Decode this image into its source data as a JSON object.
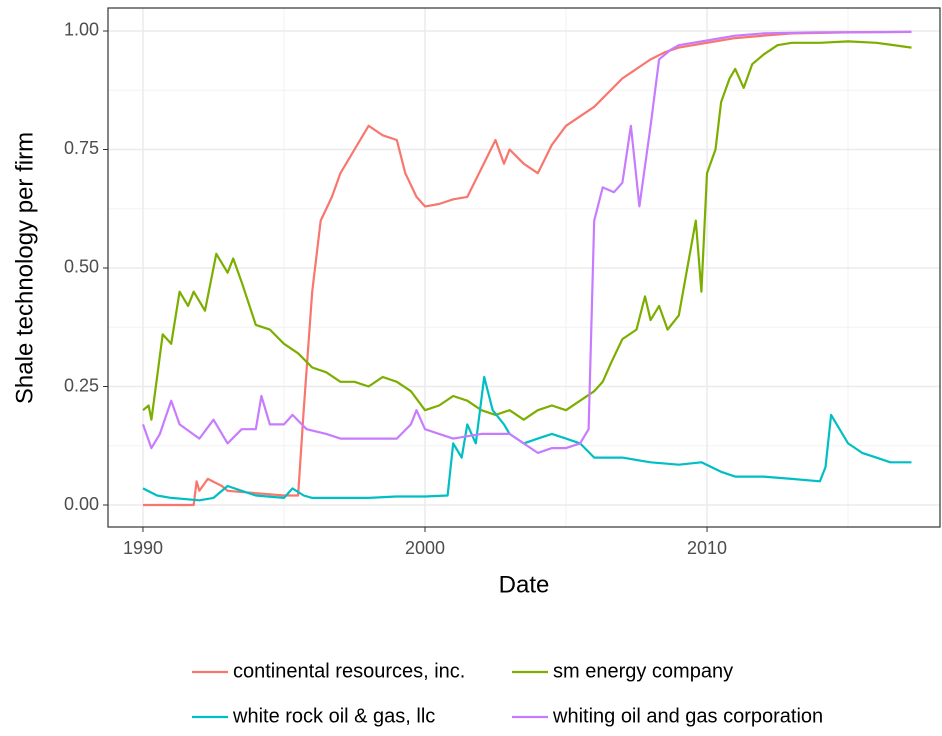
{
  "chart_data": {
    "type": "line",
    "x_label": "Date",
    "y_label": "Shale technology per firm",
    "xlim": [
      1988.76,
      2018.26
    ],
    "ylim": [
      -0.0464,
      1.0485
    ],
    "xticks": [
      1990,
      2000,
      2010
    ],
    "yticks": [
      {
        "value": 0,
        "label": "0.00"
      },
      {
        "value": 0.25,
        "label": "0.25"
      },
      {
        "value": 0.5,
        "label": "0.50"
      },
      {
        "value": 0.75,
        "label": "0.75"
      },
      {
        "value": 1,
        "label": "1.00"
      }
    ],
    "grid": true,
    "legend_position": "bottom",
    "series": [
      {
        "name": "continental resources, inc.",
        "color": "#F8766D",
        "x": [
          1990,
          1991.8,
          1991.9,
          1992,
          1992.3,
          1992.8,
          1993,
          1994,
          1995,
          1995.5,
          1995.7,
          1996,
          1996.3,
          1996.7,
          1997,
          1997.5,
          1998,
          1998.5,
          1999,
          1999.3,
          1999.7,
          2000,
          2000.5,
          2001,
          2001.5,
          2002,
          2002.5,
          2002.8,
          2003,
          2003.5,
          2004,
          2004.5,
          2005,
          2005.5,
          2006,
          2006.5,
          2007,
          2007.5,
          2008,
          2008.5,
          2009,
          2009.5,
          2010,
          2011,
          2012,
          2013,
          2015,
          2017.25
        ],
        "values": [
          0,
          0,
          0.05,
          0.03,
          0.055,
          0.04,
          0.03,
          0.025,
          0.02,
          0.02,
          0.2,
          0.45,
          0.6,
          0.65,
          0.7,
          0.75,
          0.8,
          0.78,
          0.77,
          0.7,
          0.65,
          0.63,
          0.635,
          0.645,
          0.65,
          0.71,
          0.77,
          0.72,
          0.75,
          0.72,
          0.7,
          0.76,
          0.8,
          0.82,
          0.84,
          0.87,
          0.9,
          0.92,
          0.94,
          0.955,
          0.965,
          0.97,
          0.975,
          0.985,
          0.99,
          0.995,
          0.997,
          0.998
        ]
      },
      {
        "name": "sm energy company",
        "color": "#7CAE00",
        "x": [
          1990,
          1990.2,
          1990.3,
          1990.5,
          1990.7,
          1991,
          1991.3,
          1991.6,
          1991.8,
          1992.2,
          1992.6,
          1993,
          1993.2,
          1993.5,
          1994,
          1994.5,
          1995,
          1995.5,
          1996,
          1996.5,
          1997,
          1997.5,
          1998,
          1998.5,
          1999,
          1999.5,
          2000,
          2000.5,
          2001,
          2001.5,
          2002,
          2002.5,
          2003,
          2003.5,
          2004,
          2004.5,
          2005,
          2005.5,
          2006,
          2006.3,
          2006.6,
          2007,
          2007.5,
          2007.8,
          2008,
          2008.3,
          2008.6,
          2009,
          2009.3,
          2009.6,
          2009.8,
          2010,
          2010.3,
          2010.5,
          2010.8,
          2011,
          2011.3,
          2011.6,
          2012,
          2012.5,
          2013,
          2014,
          2015,
          2016,
          2017.25
        ],
        "values": [
          0.2,
          0.21,
          0.18,
          0.27,
          0.36,
          0.34,
          0.45,
          0.42,
          0.45,
          0.41,
          0.53,
          0.49,
          0.52,
          0.47,
          0.38,
          0.37,
          0.34,
          0.32,
          0.29,
          0.28,
          0.26,
          0.26,
          0.25,
          0.27,
          0.26,
          0.24,
          0.2,
          0.21,
          0.23,
          0.22,
          0.2,
          0.19,
          0.2,
          0.18,
          0.2,
          0.21,
          0.2,
          0.22,
          0.24,
          0.26,
          0.3,
          0.35,
          0.37,
          0.44,
          0.39,
          0.42,
          0.37,
          0.4,
          0.5,
          0.6,
          0.45,
          0.7,
          0.75,
          0.85,
          0.9,
          0.92,
          0.88,
          0.93,
          0.95,
          0.97,
          0.975,
          0.975,
          0.978,
          0.975,
          0.965
        ]
      },
      {
        "name": "white rock oil & gas, llc",
        "color": "#00BFC4",
        "x": [
          1990,
          1990.5,
          1991,
          1992,
          1992.5,
          1993,
          1993.5,
          1994,
          1995,
          1995.3,
          1995.7,
          1996,
          1997,
          1998,
          1999,
          2000,
          2000.8,
          2001,
          2001.3,
          2001.5,
          2001.8,
          2002.1,
          2002.4,
          2002.8,
          2003,
          2003.5,
          2004,
          2004.5,
          2005,
          2005.5,
          2006,
          2007,
          2008,
          2009,
          2009.8,
          2010.5,
          2011,
          2012,
          2013,
          2014,
          2014.2,
          2014.4,
          2014.7,
          2015,
          2015.5,
          2016,
          2016.5,
          2017.25
        ],
        "values": [
          0.035,
          0.02,
          0.015,
          0.01,
          0.015,
          0.04,
          0.03,
          0.02,
          0.015,
          0.035,
          0.02,
          0.015,
          0.015,
          0.015,
          0.018,
          0.018,
          0.02,
          0.13,
          0.1,
          0.17,
          0.13,
          0.27,
          0.2,
          0.17,
          0.15,
          0.13,
          0.14,
          0.15,
          0.14,
          0.13,
          0.1,
          0.1,
          0.09,
          0.085,
          0.09,
          0.07,
          0.06,
          0.06,
          0.055,
          0.05,
          0.08,
          0.19,
          0.16,
          0.13,
          0.11,
          0.1,
          0.09,
          0.09
        ]
      },
      {
        "name": "whiting oil and gas corporation",
        "color": "#C77CFF",
        "x": [
          1990,
          1990.3,
          1990.6,
          1991,
          1991.3,
          1992,
          1992.5,
          1993,
          1993.5,
          1994,
          1994.2,
          1994.5,
          1995,
          1995.3,
          1995.8,
          1996.5,
          1997,
          1998,
          1999,
          1999.5,
          1999.7,
          2000,
          2000.5,
          2001,
          2002,
          2003,
          2003.5,
          2004,
          2004.5,
          2005,
          2005.5,
          2005.8,
          2006,
          2006.3,
          2006.7,
          2007,
          2007.3,
          2007.6,
          2008,
          2008.3,
          2008.7,
          2009,
          2010,
          2011,
          2012,
          2014,
          2017.25
        ],
        "values": [
          0.17,
          0.12,
          0.15,
          0.22,
          0.17,
          0.14,
          0.18,
          0.13,
          0.16,
          0.16,
          0.23,
          0.17,
          0.17,
          0.19,
          0.16,
          0.15,
          0.14,
          0.14,
          0.14,
          0.17,
          0.2,
          0.16,
          0.15,
          0.14,
          0.15,
          0.15,
          0.13,
          0.11,
          0.12,
          0.12,
          0.13,
          0.16,
          0.6,
          0.67,
          0.66,
          0.68,
          0.8,
          0.63,
          0.8,
          0.94,
          0.96,
          0.97,
          0.98,
          0.99,
          0.995,
          0.997,
          0.998
        ]
      }
    ]
  }
}
